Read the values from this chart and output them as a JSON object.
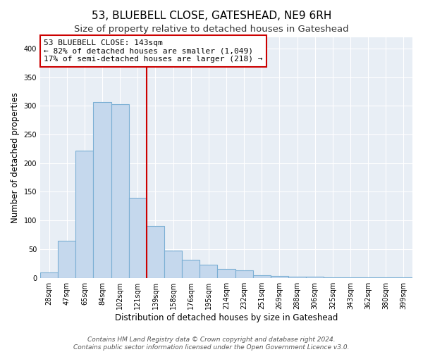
{
  "title": "53, BLUEBELL CLOSE, GATESHEAD, NE9 6RH",
  "subtitle": "Size of property relative to detached houses in Gateshead",
  "xlabel": "Distribution of detached houses by size in Gateshead",
  "ylabel": "Number of detached properties",
  "bar_labels": [
    "28sqm",
    "47sqm",
    "65sqm",
    "84sqm",
    "102sqm",
    "121sqm",
    "139sqm",
    "158sqm",
    "176sqm",
    "195sqm",
    "214sqm",
    "232sqm",
    "251sqm",
    "269sqm",
    "288sqm",
    "306sqm",
    "325sqm",
    "343sqm",
    "362sqm",
    "380sqm",
    "399sqm"
  ],
  "bar_values": [
    10,
    65,
    222,
    306,
    303,
    140,
    90,
    47,
    31,
    23,
    16,
    13,
    4,
    3,
    2,
    2,
    1,
    1,
    1,
    1,
    1
  ],
  "bar_color": "#c5d8ed",
  "bar_edge_color": "#7bafd4",
  "vline_x_index": 6,
  "vline_color": "#cc0000",
  "annotation_title": "53 BLUEBELL CLOSE: 143sqm",
  "annotation_line1": "← 82% of detached houses are smaller (1,049)",
  "annotation_line2": "17% of semi-detached houses are larger (218) →",
  "annotation_box_color": "#ffffff",
  "annotation_box_edge_color": "#cc0000",
  "ylim": [
    0,
    420
  ],
  "yticks": [
    0,
    50,
    100,
    150,
    200,
    250,
    300,
    350,
    400
  ],
  "footer1": "Contains HM Land Registry data © Crown copyright and database right 2024.",
  "footer2": "Contains public sector information licensed under the Open Government Licence v3.0.",
  "bg_color": "#ffffff",
  "plot_bg_color": "#e8eef5",
  "grid_color": "#ffffff",
  "title_fontsize": 11,
  "subtitle_fontsize": 9.5,
  "axis_label_fontsize": 8.5,
  "tick_fontsize": 7,
  "annotation_fontsize": 8,
  "footer_fontsize": 6.5
}
